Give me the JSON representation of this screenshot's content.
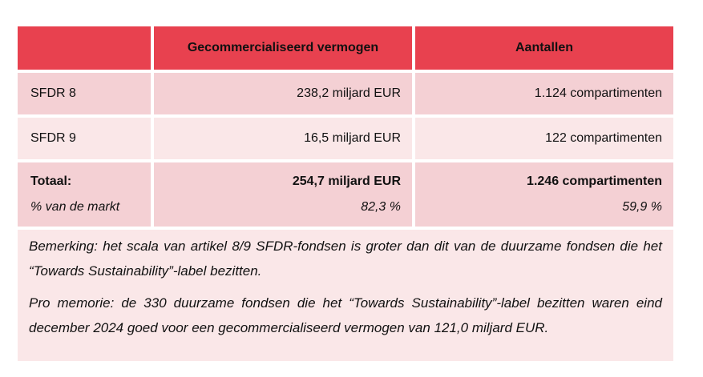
{
  "colors": {
    "header_red": "#E8414F",
    "row_pink_dark": "#F4D0D4",
    "row_pink_light": "#FAE7E8",
    "text_color": "#111111",
    "page_bg": "#FFFFFF"
  },
  "table": {
    "headers": [
      "",
      "Gecommercialiseerd vermogen",
      "Aantallen"
    ],
    "rows": [
      {
        "label": "SFDR 8",
        "vermogen": "238,2 miljard EUR",
        "aantal": "1.124 compartimenten"
      },
      {
        "label": "SFDR 9",
        "vermogen": "16,5 miljard EUR",
        "aantal": "122 compartimenten"
      }
    ],
    "total_row": {
      "label_line1": "Totaal:",
      "label_line2": "% van de markt",
      "vermogen_line1": "254,7 miljard EUR",
      "vermogen_line2": "82,3 %",
      "aantal_line1": "1.246 compartimenten",
      "aantal_line2": "59,9 %"
    },
    "notes": [
      "Bemerking: het scala van artikel 8/9 SFDR-fondsen is groter dan dit van de duurzame fondsen die het “Towards Sustainability”-label bezitten.",
      "Pro memorie: de 330 duurzame fondsen die het “Towards Sustainability”-label bezitten waren eind december 2024 goed voor een gecommercialiseerd vermogen van 121,0 miljard EUR."
    ]
  }
}
